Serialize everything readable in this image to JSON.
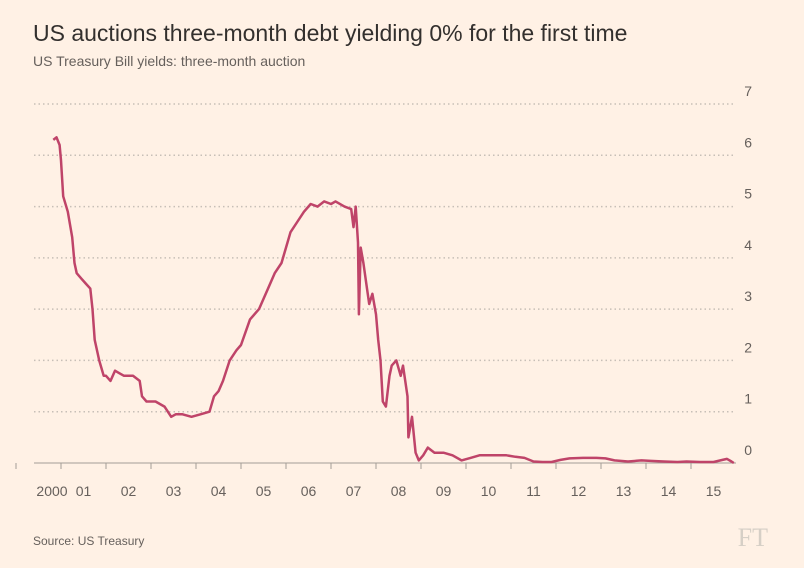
{
  "chart_data": {
    "type": "line",
    "title": "US auctions three-month debt yielding 0% for the first time",
    "subtitle": "US Treasury Bill yields: three-month auction",
    "source": "Source: US Treasury",
    "logo": "FT",
    "xlim": [
      2000.4,
      2016.0
    ],
    "xticks": [
      2000,
      {
        "value": 2001,
        "label": "01"
      },
      {
        "value": 2002,
        "label": "02"
      },
      {
        "value": 2003,
        "label": "03"
      },
      {
        "value": 2004,
        "label": "04"
      },
      {
        "value": 2005,
        "label": "05"
      },
      {
        "value": 2006,
        "label": "06"
      },
      {
        "value": 2007,
        "label": "07"
      },
      {
        "value": 2008,
        "label": "08"
      },
      {
        "value": 2009,
        "label": "09"
      },
      {
        "value": 2010,
        "label": "10"
      },
      {
        "value": 2011,
        "label": "11"
      },
      {
        "value": 2012,
        "label": "12"
      },
      {
        "value": 2013,
        "label": "13"
      },
      {
        "value": 2014,
        "label": "14"
      },
      {
        "value": 2015,
        "label": "15"
      }
    ],
    "ylim": [
      0,
      7
    ],
    "yticks": [
      0,
      1,
      2,
      3,
      4,
      5,
      6,
      7
    ],
    "grid": true,
    "x": [
      2000.83,
      2000.9,
      2000.97,
      2001.0,
      2001.05,
      2001.15,
      2001.25,
      2001.3,
      2001.35,
      2001.45,
      2001.55,
      2001.65,
      2001.7,
      2001.75,
      2001.85,
      2001.95,
      2002.0,
      2002.1,
      2002.2,
      2002.3,
      2002.4,
      2002.6,
      2002.75,
      2002.8,
      2002.9,
      2003.1,
      2003.3,
      2003.45,
      2003.55,
      2003.7,
      2003.9,
      2004.1,
      2004.3,
      2004.4,
      2004.5,
      2004.6,
      2004.75,
      2004.9,
      2005.0,
      2005.2,
      2005.4,
      2005.6,
      2005.75,
      2005.9,
      2006.0,
      2006.1,
      2006.25,
      2006.4,
      2006.55,
      2006.7,
      2006.85,
      2007.0,
      2007.1,
      2007.3,
      2007.45,
      2007.5,
      2007.55,
      2007.6,
      2007.62,
      2007.66,
      2007.72,
      2007.8,
      2007.85,
      2007.92,
      2008.0,
      2008.05,
      2008.1,
      2008.15,
      2008.22,
      2008.3,
      2008.35,
      2008.45,
      2008.55,
      2008.6,
      2008.7,
      2008.72,
      2008.8,
      2008.88,
      2008.95,
      2009.05,
      2009.15,
      2009.3,
      2009.5,
      2009.7,
      2009.9,
      2010.1,
      2010.3,
      2010.6,
      2010.9,
      2011.1,
      2011.3,
      2011.5,
      2011.7,
      2011.9,
      2012.1,
      2012.3,
      2012.6,
      2012.9,
      2013.1,
      2013.3,
      2013.6,
      2013.9,
      2014.1,
      2014.4,
      2014.7,
      2014.9,
      2015.2,
      2015.5,
      2015.7,
      2015.8,
      2015.9,
      2015.95
    ],
    "series": [
      {
        "name": "three-month auction",
        "color": "#bf4469",
        "values": [
          6.3,
          6.35,
          6.2,
          5.9,
          5.2,
          4.9,
          4.4,
          3.9,
          3.7,
          3.6,
          3.5,
          3.4,
          3.0,
          2.4,
          2.0,
          1.7,
          1.7,
          1.6,
          1.8,
          1.75,
          1.7,
          1.7,
          1.6,
          1.3,
          1.2,
          1.2,
          1.1,
          0.9,
          0.95,
          0.95,
          0.9,
          0.95,
          1.0,
          1.3,
          1.4,
          1.6,
          2.0,
          2.2,
          2.3,
          2.8,
          3.0,
          3.4,
          3.7,
          3.9,
          4.2,
          4.5,
          4.7,
          4.9,
          5.05,
          5.0,
          5.1,
          5.05,
          5.1,
          5.0,
          4.95,
          4.6,
          5.0,
          4.3,
          2.9,
          4.2,
          3.9,
          3.4,
          3.1,
          3.3,
          2.9,
          2.4,
          2.0,
          1.2,
          1.1,
          1.7,
          1.9,
          2.0,
          1.7,
          1.9,
          1.3,
          0.5,
          0.9,
          0.2,
          0.05,
          0.15,
          0.3,
          0.2,
          0.2,
          0.15,
          0.05,
          0.1,
          0.15,
          0.15,
          0.15,
          0.12,
          0.1,
          0.03,
          0.02,
          0.02,
          0.06,
          0.09,
          0.1,
          0.1,
          0.09,
          0.05,
          0.03,
          0.05,
          0.04,
          0.03,
          0.02,
          0.03,
          0.02,
          0.02,
          0.06,
          0.08,
          0.03,
          0.0
        ]
      }
    ]
  }
}
